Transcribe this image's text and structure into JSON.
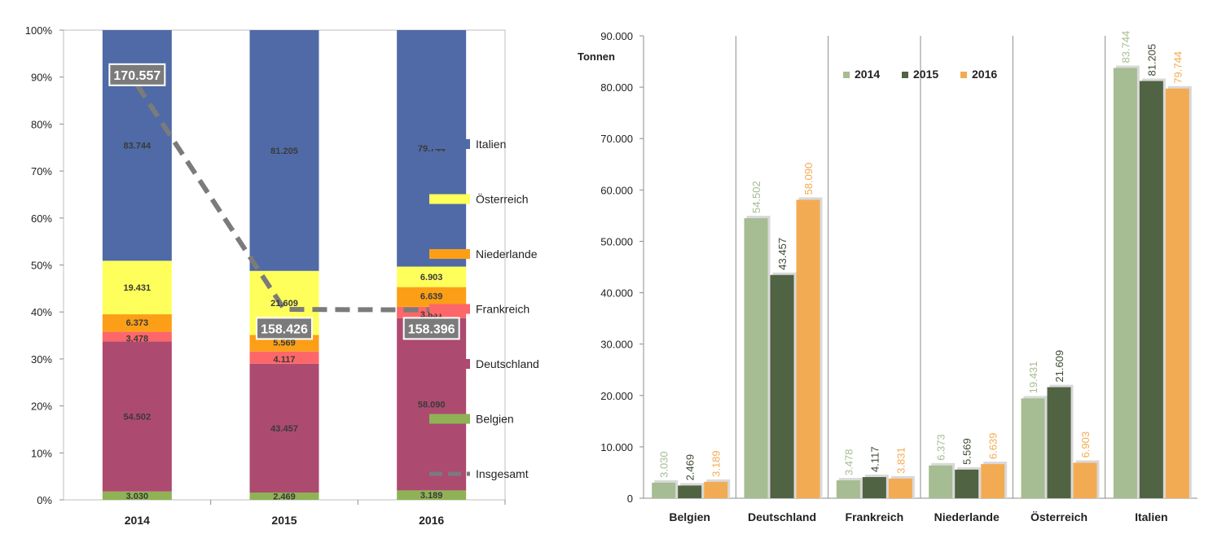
{
  "chart_data": [
    {
      "type": "bar",
      "stacked": true,
      "normalized": true,
      "categories": [
        "2014",
        "2015",
        "2016"
      ],
      "series": [
        {
          "name": "Belgien",
          "color": "#8fb255",
          "values": [
            3030,
            2469,
            3189
          ],
          "labels": [
            "3.030",
            "2.469",
            "3.189"
          ]
        },
        {
          "name": "Deutschland",
          "color": "#ad4a70",
          "values": [
            54502,
            43457,
            58090
          ],
          "labels": [
            "54.502",
            "43.457",
            "58.090"
          ]
        },
        {
          "name": "Frankreich",
          "color": "#fd6769",
          "values": [
            3478,
            4117,
            3831
          ],
          "labels": [
            "3.478",
            "4.117",
            "3.831"
          ]
        },
        {
          "name": "Niederlande",
          "color": "#fc9f17",
          "values": [
            6373,
            5569,
            6639
          ],
          "labels": [
            "6.373",
            "5.569",
            "6.639"
          ]
        },
        {
          "name": "Österreich",
          "color": "#ffff5b",
          "values": [
            19431,
            21609,
            6903
          ],
          "labels": [
            "19.431",
            "21.609",
            "6.903"
          ]
        },
        {
          "name": "Italien",
          "color": "#4f6aa6",
          "values": [
            83744,
            81205,
            79744
          ],
          "labels": [
            "83.744",
            "81.205",
            "79.744"
          ]
        }
      ],
      "line_series": {
        "name": "Insgesamt",
        "color": "#7b7b7b",
        "values": [
          170557,
          158426,
          158396
        ],
        "labels": [
          "170.557",
          "158.426",
          "158.396"
        ],
        "style": "dashed",
        "axis": "secondary"
      },
      "y_ticks": [
        "0%",
        "10%",
        "20%",
        "30%",
        "40%",
        "50%",
        "60%",
        "70%",
        "80%",
        "90%",
        "100%"
      ],
      "ylim": [
        0,
        1
      ],
      "legend": "right",
      "grid": false
    },
    {
      "type": "bar",
      "categories": [
        "Belgien",
        "Deutschland",
        "Frankreich",
        "Niederlande",
        "Österreich",
        "Italien"
      ],
      "series": [
        {
          "name": "2014",
          "color": "#a6bc92",
          "values": [
            3030,
            54502,
            3478,
            6373,
            19431,
            83744
          ],
          "labels": [
            "3.030",
            "54.502",
            "3.478",
            "6.373",
            "19.431",
            "83.744"
          ]
        },
        {
          "name": "2015",
          "color": "#506343",
          "values": [
            2469,
            43457,
            4117,
            5569,
            21609,
            81205
          ],
          "labels": [
            "2.469",
            "43.457",
            "4.117",
            "5.569",
            "21.609",
            "81.205"
          ]
        },
        {
          "name": "2016",
          "color": "#f3ab53",
          "values": [
            3189,
            58090,
            3831,
            6639,
            6903,
            79744
          ],
          "labels": [
            "3.189",
            "58.090",
            "3.831",
            "6.639",
            "6.903",
            "79.744"
          ]
        }
      ],
      "ylabel": "Tonnen",
      "y_ticks": [
        "0",
        "10.000",
        "20.000",
        "30.000",
        "40.000",
        "50.000",
        "60.000",
        "70.000",
        "80.000",
        "90.000"
      ],
      "ylim": [
        0,
        90000
      ],
      "legend": "top",
      "grid": "vertical"
    }
  ]
}
